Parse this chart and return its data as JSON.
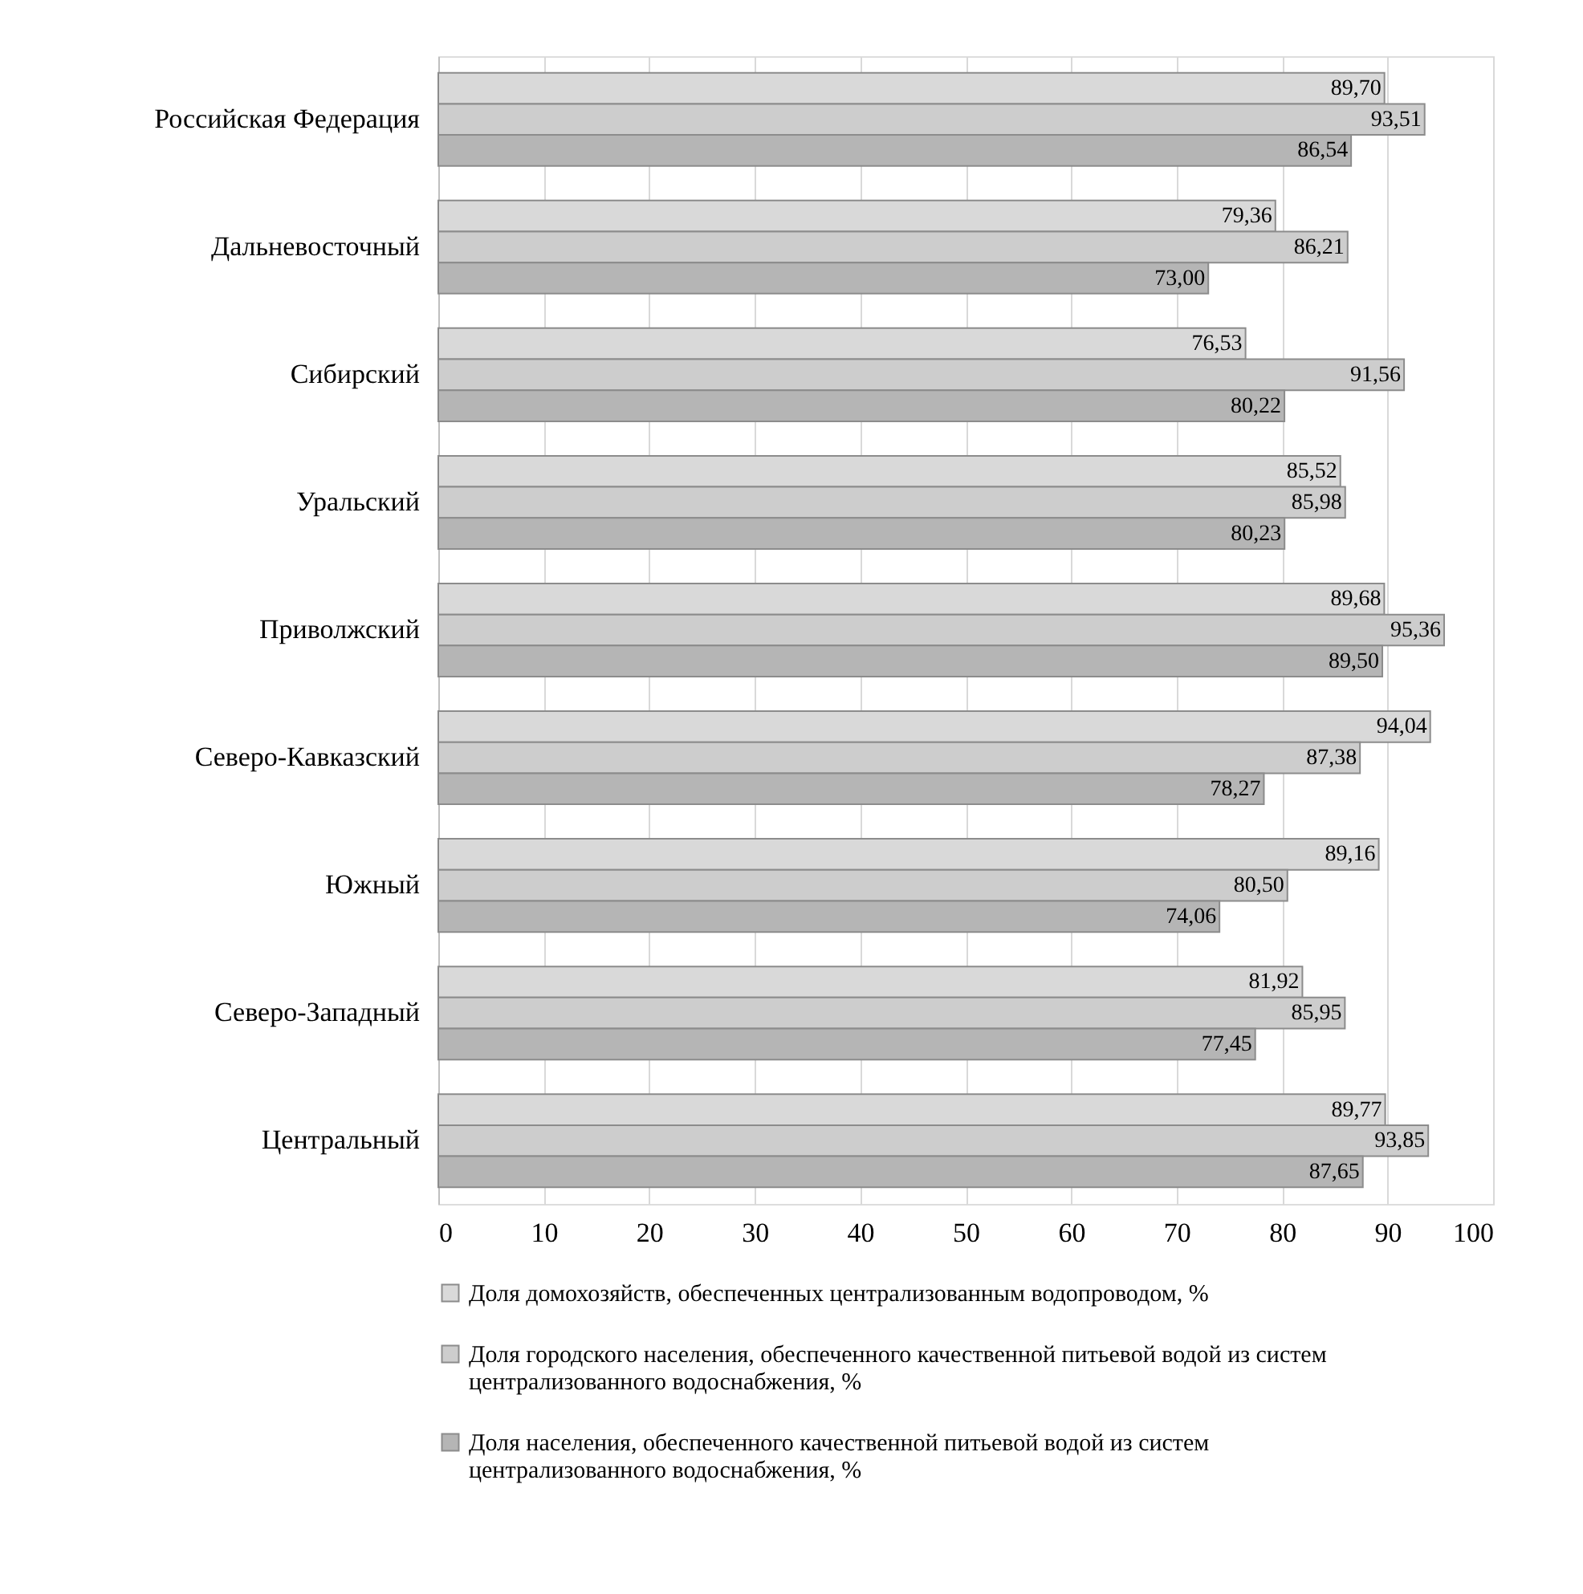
{
  "chart_data": {
    "type": "bar",
    "orientation": "horizontal",
    "categories": [
      "Российская Федерация",
      "Дальневосточный",
      "Сибирский",
      "Уральский",
      "Приволжский",
      "Северо-Кавказский",
      "Южный",
      "Северо-Западный",
      "Центральный"
    ],
    "series": [
      {
        "name": "Доля домохозяйств, обеспеченных централизованным водопроводом, %",
        "color": "#d9d9d9",
        "values": [
          89.7,
          79.36,
          76.53,
          85.52,
          89.68,
          94.04,
          89.16,
          81.92,
          89.77
        ],
        "value_labels": [
          "89,70",
          "79,36",
          "76,53",
          "85,52",
          "89,68",
          "94,04",
          "89,16",
          "81,92",
          "89,77"
        ]
      },
      {
        "name": "Доля городского населения, обеспеченного качественной питьевой водой из систем централизованного водоснабжения, %",
        "color": "#cdcdcd",
        "values": [
          93.51,
          86.21,
          91.56,
          85.98,
          95.36,
          87.38,
          80.5,
          85.95,
          93.85
        ],
        "value_labels": [
          "93,51",
          "86,21",
          "91,56",
          "85,98",
          "95,36",
          "87,38",
          "80,50",
          "85,95",
          "93,85"
        ]
      },
      {
        "name": "Доля населения, обеспеченного качественной питьевой водой из систем централизованного водоснабжения, %",
        "color": "#b5b5b5",
        "values": [
          86.54,
          73.0,
          80.22,
          80.23,
          89.5,
          78.27,
          74.06,
          77.45,
          87.65
        ],
        "value_labels": [
          "86,54",
          "73,00",
          "80,22",
          "80,23",
          "89,50",
          "78,27",
          "74,06",
          "77,45",
          "87,65"
        ]
      }
    ],
    "xlim": [
      0,
      100
    ],
    "xticks": [
      0,
      10,
      20,
      30,
      40,
      50,
      60,
      70,
      80,
      90,
      100
    ],
    "grid": "x",
    "legend": "bottom"
  }
}
